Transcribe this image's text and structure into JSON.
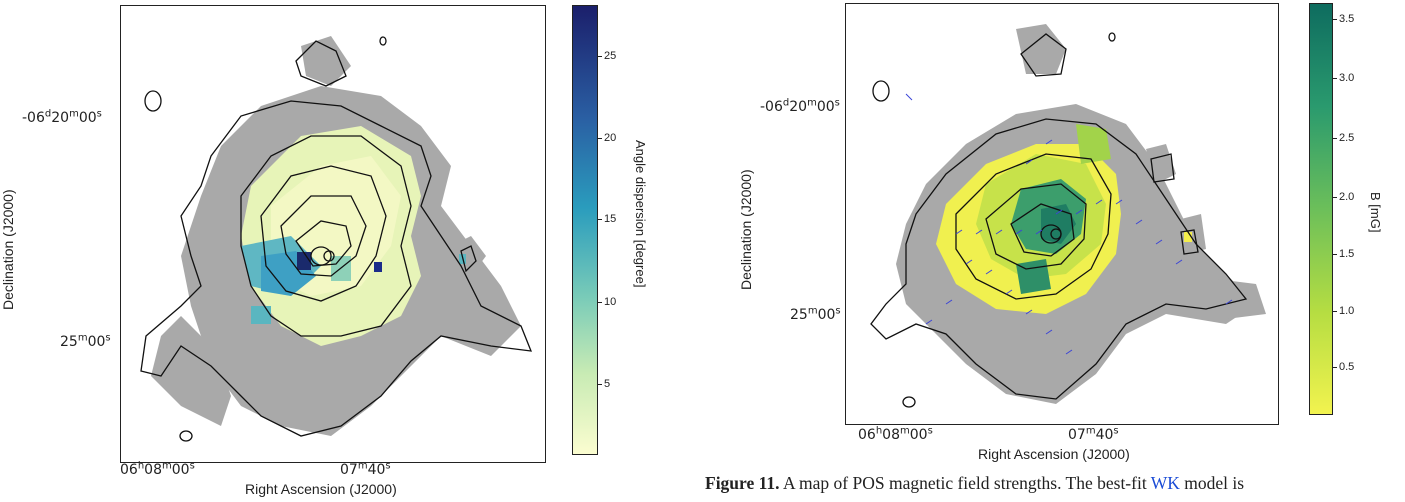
{
  "left_panel": {
    "ytick_top": "-06d20m00s",
    "ytick_mid": "25m00s",
    "xtick_left": "06h08m00s",
    "xtick_right": "07m40s",
    "xlabel": "Right Ascension (J2000)",
    "ylabel": "Declination (J2000)",
    "colorbar_label": "Angle dispersion [degree]",
    "colorbar_ticks": [
      "25",
      "20",
      "15",
      "10",
      "5"
    ],
    "colormap": [
      "#1b1f6b",
      "#2a5fa3",
      "#2a9cbd",
      "#79cbb8",
      "#c8ebb4",
      "#fbfdd0"
    ]
  },
  "right_panel": {
    "ytick_top": "-06d20m00s",
    "ytick_mid": "25m00s",
    "xtick_left": "06h08m00s",
    "xtick_right": "07m40s",
    "xlabel": "Right Ascension (J2000)",
    "ylabel": "Declination (J2000)",
    "colorbar_label": "B [mG]",
    "colorbar_ticks": [
      "3.5",
      "3.0",
      "2.5",
      "2.0",
      "1.5",
      "1.0",
      "0.5"
    ],
    "colormap": [
      "#0e6c5f",
      "#2a9a6e",
      "#6cbf5a",
      "#b5dd42",
      "#f2f34f"
    ]
  },
  "caption": {
    "figure_label": "Figure 11.",
    "text_before_link": "A map of POS magnetic field strengths. The best-fit",
    "link_text": "WK",
    "text_after_link": "model is"
  }
}
